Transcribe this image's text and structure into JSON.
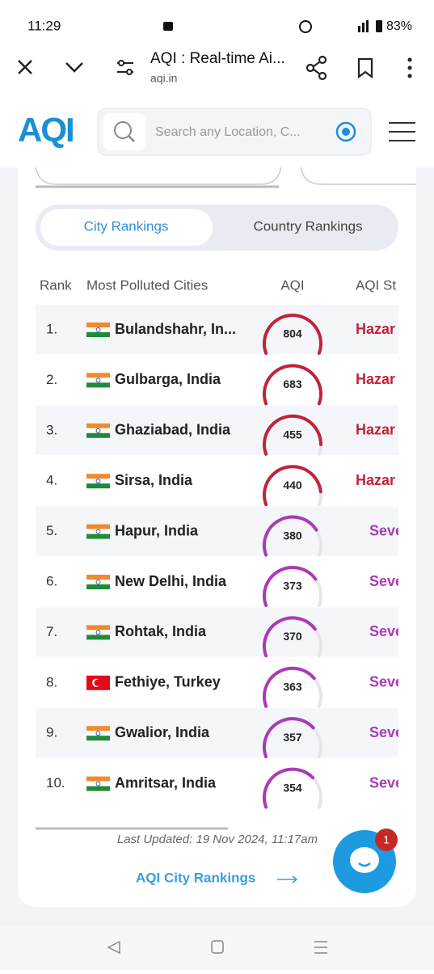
{
  "status_bar": {
    "time": "11:29",
    "battery": "83%"
  },
  "browser": {
    "title": "AQI : Real-time Ai...",
    "url": "aqi.in"
  },
  "site": {
    "logo": "AQI",
    "search_placeholder": "Search any Location, C..."
  },
  "tabs": [
    "City Rankings",
    "Country Rankings"
  ],
  "table": {
    "headers": [
      "Rank",
      "Most Polluted Cities",
      "AQI",
      "AQI St"
    ],
    "rows": [
      {
        "rank": "1.",
        "city": "Bulandshahr, In...",
        "aqi": 804,
        "status": "Hazar",
        "color": "#c0233a",
        "flag": "IN"
      },
      {
        "rank": "2.",
        "city": "Gulbarga, India",
        "aqi": 683,
        "status": "Hazar",
        "color": "#c0233a",
        "flag": "IN"
      },
      {
        "rank": "3.",
        "city": "Ghaziabad, India",
        "aqi": 455,
        "status": "Hazar",
        "color": "#c0233a",
        "flag": "IN"
      },
      {
        "rank": "4.",
        "city": "Sirsa, India",
        "aqi": 440,
        "status": "Hazar",
        "color": "#c0233a",
        "flag": "IN"
      },
      {
        "rank": "5.",
        "city": "Hapur, India",
        "aqi": 380,
        "status": "Seve",
        "color": "#a93bb6",
        "flag": "IN"
      },
      {
        "rank": "6.",
        "city": "New Delhi, India",
        "aqi": 373,
        "status": "Seve",
        "color": "#a93bb6",
        "flag": "IN"
      },
      {
        "rank": "7.",
        "city": "Rohtak, India",
        "aqi": 370,
        "status": "Seve",
        "color": "#a93bb6",
        "flag": "IN"
      },
      {
        "rank": "8.",
        "city": "Fethiye, Turkey",
        "aqi": 363,
        "status": "Seve",
        "color": "#a93bb6",
        "flag": "TR"
      },
      {
        "rank": "9.",
        "city": "Gwalior, India",
        "aqi": 357,
        "status": "Seve",
        "color": "#a93bb6",
        "flag": "IN"
      },
      {
        "rank": "10.",
        "city": "Amritsar, India",
        "aqi": 354,
        "status": "Seve",
        "color": "#a93bb6",
        "flag": "IN"
      }
    ]
  },
  "last_updated": "Last Updated: 19 Nov 2024, 11:17am",
  "link": "AQI City Rankings",
  "chat_badge": "1"
}
